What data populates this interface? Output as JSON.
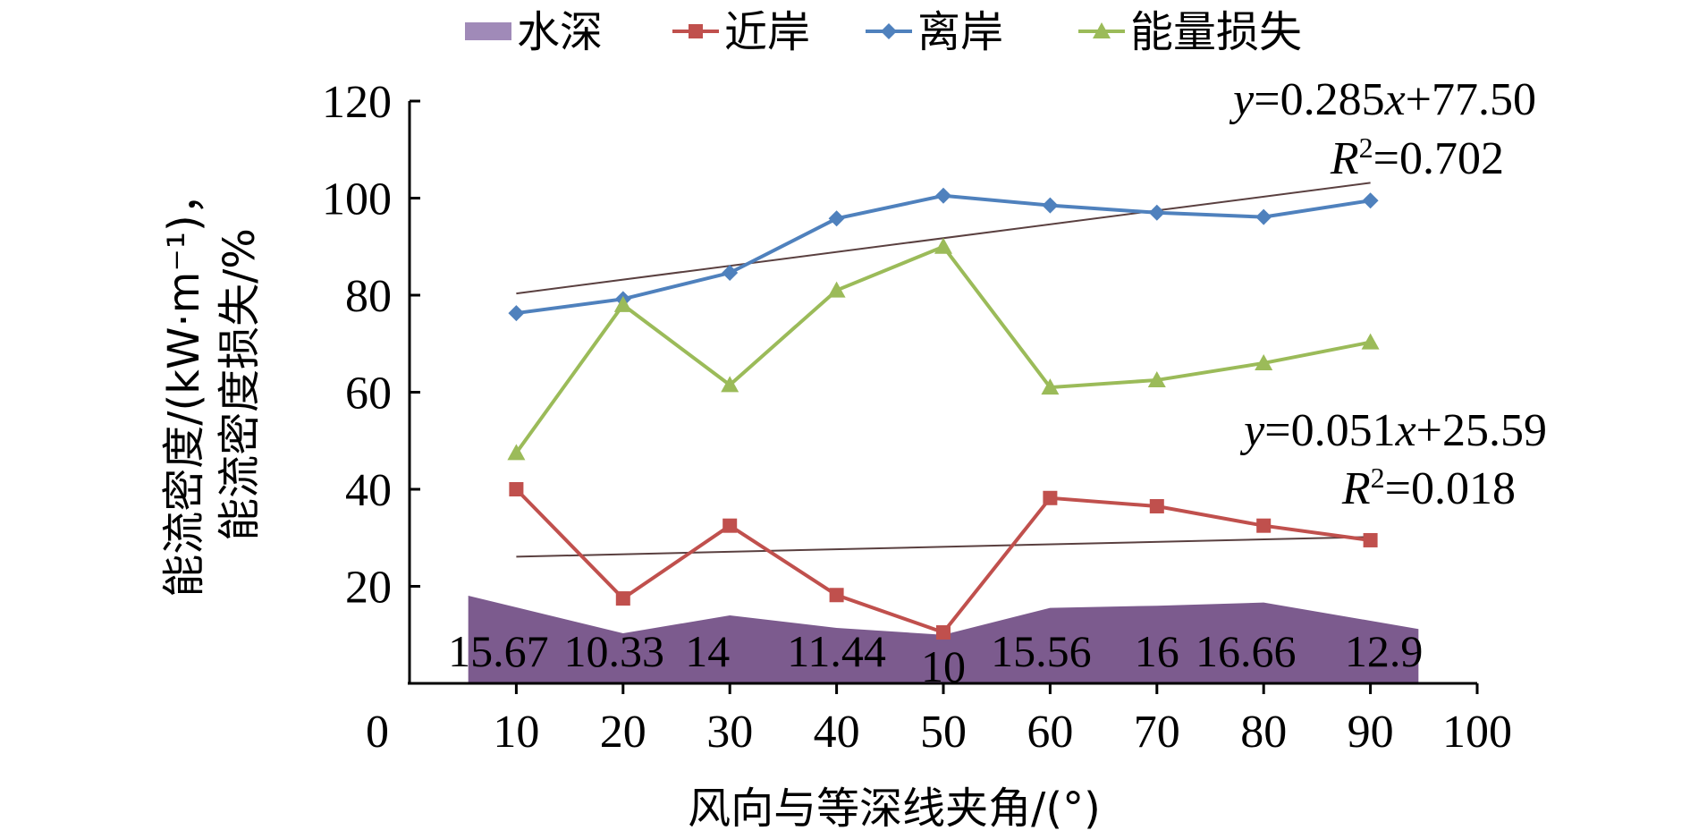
{
  "chart_data": {
    "type": "line",
    "title": "",
    "xlabel": "风向与等深线夹角/(°)",
    "ylabel": "能流密度/(kW·m⁻¹)，能流密度损失/%",
    "ylabel_lines": [
      "能流密度/(kW·m⁻¹)，",
      "能流密度损失/%"
    ],
    "xlim": [
      0,
      100
    ],
    "ylim": [
      0,
      120
    ],
    "x_ticks": [
      0,
      10,
      20,
      30,
      40,
      50,
      60,
      70,
      80,
      90,
      100
    ],
    "y_ticks": [
      20,
      40,
      60,
      80,
      100,
      120
    ],
    "x": [
      10,
      20,
      30,
      40,
      50,
      60,
      70,
      80,
      90
    ],
    "grid": false,
    "legend_position": "top",
    "legend": [
      {
        "name": "水深",
        "marker": "area",
        "color": "#a08ab8"
      },
      {
        "name": "近岸",
        "marker": "square",
        "color": "#c0504d"
      },
      {
        "name": "离岸",
        "marker": "diamond",
        "color": "#4f81bd"
      },
      {
        "name": "能量损失",
        "marker": "triangle",
        "color": "#9bbb59"
      }
    ],
    "area_series": {
      "name": "水深",
      "color": "#7c5b8e",
      "values": [
        15.67,
        10.33,
        14,
        11.44,
        10,
        15.56,
        16,
        16.66,
        12.9
      ],
      "labels": [
        "15.67",
        "10.33",
        "14",
        "11.44",
        "10",
        "15.56",
        "16",
        "16.66",
        "12.9"
      ]
    },
    "series": [
      {
        "name": "近岸",
        "color": "#c0504d",
        "marker": "square",
        "values": [
          40,
          17.5,
          32.5,
          18.2,
          10.5,
          38.2,
          36.5,
          32.5,
          29.5
        ]
      },
      {
        "name": "离岸",
        "color": "#4f81bd",
        "marker": "diamond",
        "values": [
          76.3,
          79.2,
          84.6,
          95.8,
          100.5,
          98.5,
          97.0,
          96.1,
          99.5
        ]
      },
      {
        "name": "能量损失",
        "color": "#9bbb59",
        "marker": "triangle",
        "values": [
          47.5,
          78.0,
          61.5,
          81.0,
          90.0,
          61.0,
          62.5,
          66.0,
          70.3
        ]
      }
    ],
    "trendlines": [
      {
        "target": "离岸",
        "slope": 0.285,
        "intercept": 77.5,
        "x_range": [
          10,
          90
        ],
        "color": "#5a4040",
        "equation": {
          "y": "y",
          "rest": "=0.285",
          "x": "x",
          "tail": "+77.50"
        },
        "r2": {
          "r": "R",
          "sup": "2",
          "rest": "=0.702"
        }
      },
      {
        "target": "近岸",
        "slope": 0.051,
        "intercept": 25.59,
        "x_range": [
          10,
          90
        ],
        "color": "#5a4040",
        "equation": {
          "y": "y",
          "rest": "=0.051",
          "x": "x",
          "tail": "+25.59"
        },
        "r2": {
          "r": "R",
          "sup": "2",
          "rest": "=0.018"
        }
      }
    ]
  }
}
